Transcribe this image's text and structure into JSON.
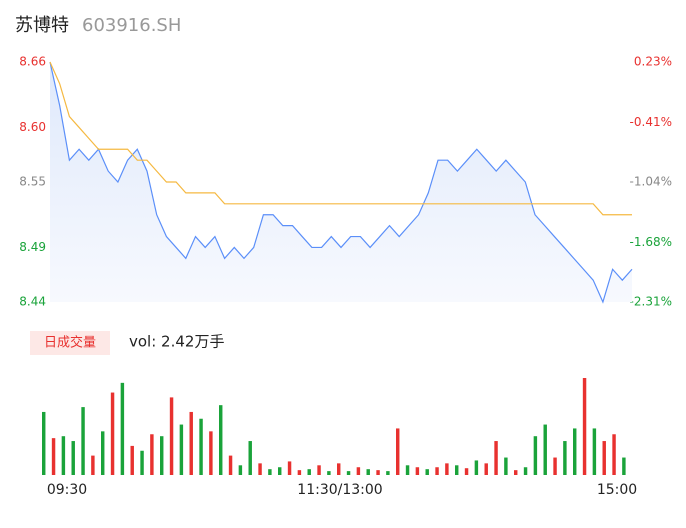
{
  "header": {
    "name": "苏博特",
    "code": "603916.SH"
  },
  "chart_data": [
    {
      "type": "line",
      "ylim": [
        8.44,
        8.66
      ],
      "y2lim": [
        -2.31,
        0.23
      ],
      "yticks": [
        8.66,
        {
          "value": 8.6,
          "label": "8.60"
        },
        8.55,
        8.49,
        8.44
      ],
      "ytick_colors": [
        "#e8312f",
        "#e8312f",
        "#888888",
        "#1aa33a",
        "#1aa33a"
      ],
      "y2ticks": [
        {
          "value": 0.23,
          "label": "0.23%"
        },
        {
          "value": -0.41,
          "label": "-0.41%"
        },
        {
          "value": -1.04,
          "label": "-1.04%"
        },
        {
          "value": -1.68,
          "label": "-1.68%"
        },
        {
          "value": -2.31,
          "label": "-2.31%"
        }
      ],
      "xticks": [
        "09:30",
        "11:30/13:00",
        "15:00"
      ],
      "series": [
        {
          "color": "#5b8ff9",
          "values": [
            8.66,
            8.62,
            8.57,
            8.58,
            8.57,
            8.58,
            8.56,
            8.55,
            8.57,
            8.58,
            8.56,
            8.52,
            8.5,
            8.49,
            8.48,
            8.5,
            8.49,
            8.5,
            8.48,
            8.49,
            8.48,
            8.49,
            8.52,
            8.52,
            8.51,
            8.51,
            8.5,
            8.49,
            8.49,
            8.5,
            8.49,
            8.5,
            8.5,
            8.49,
            8.5,
            8.51,
            8.5,
            8.51,
            8.52,
            8.54,
            8.57,
            8.57,
            8.56,
            8.57,
            8.58,
            8.57,
            8.56,
            8.57,
            8.56,
            8.55,
            8.52,
            8.51,
            8.5,
            8.49,
            8.48,
            8.47,
            8.46,
            8.44,
            8.47,
            8.46,
            8.47
          ]
        },
        {
          "color": "#f5b942",
          "values": [
            8.66,
            8.64,
            8.61,
            8.6,
            8.59,
            8.58,
            8.58,
            8.58,
            8.58,
            8.57,
            8.57,
            8.56,
            8.55,
            8.55,
            8.54,
            8.54,
            8.54,
            8.54,
            8.53,
            8.53,
            8.53,
            8.53,
            8.53,
            8.53,
            8.53,
            8.53,
            8.53,
            8.53,
            8.53,
            8.53,
            8.53,
            8.53,
            8.53,
            8.53,
            8.53,
            8.53,
            8.53,
            8.53,
            8.53,
            8.53,
            8.53,
            8.53,
            8.53,
            8.53,
            8.53,
            8.53,
            8.53,
            8.53,
            8.53,
            8.53,
            8.53,
            8.53,
            8.53,
            8.53,
            8.53,
            8.53,
            8.53,
            8.52,
            8.52,
            8.52,
            8.52
          ]
        }
      ]
    },
    {
      "type": "bar",
      "label": "日成交量",
      "summary": "vol: 2.42万手",
      "ylim": [
        0,
        100
      ],
      "values": [
        65,
        38,
        40,
        35,
        70,
        20,
        45,
        85,
        95,
        30,
        25,
        42,
        40,
        80,
        52,
        65,
        58,
        45,
        72,
        20,
        10,
        35,
        12,
        6,
        8,
        14,
        5,
        6,
        10,
        4,
        12,
        4,
        8,
        6,
        5,
        4,
        48,
        10,
        8,
        6,
        8,
        12,
        10,
        7,
        15,
        12,
        35,
        18,
        5,
        8,
        40,
        52,
        18,
        35,
        48,
        100,
        48,
        35,
        42,
        18
      ],
      "colors": [
        "#1aa33a",
        "#e8312f",
        "#1aa33a",
        "#1aa33a",
        "#1aa33a",
        "#e8312f",
        "#1aa33a",
        "#e8312f",
        "#1aa33a",
        "#e8312f",
        "#1aa33a",
        "#e8312f",
        "#1aa33a",
        "#e8312f",
        "#1aa33a",
        "#e8312f",
        "#1aa33a",
        "#e8312f",
        "#1aa33a",
        "#e8312f",
        "#1aa33a",
        "#1aa33a",
        "#e8312f",
        "#1aa33a",
        "#1aa33a",
        "#e8312f",
        "#e8312f",
        "#1aa33a",
        "#e8312f",
        "#1aa33a",
        "#e8312f",
        "#1aa33a",
        "#e8312f",
        "#1aa33a",
        "#e8312f",
        "#1aa33a",
        "#e8312f",
        "#1aa33a",
        "#e8312f",
        "#1aa33a",
        "#e8312f",
        "#e8312f",
        "#1aa33a",
        "#e8312f",
        "#1aa33a",
        "#e8312f",
        "#e8312f",
        "#1aa33a",
        "#e8312f",
        "#1aa33a",
        "#1aa33a",
        "#1aa33a",
        "#e8312f",
        "#1aa33a",
        "#1aa33a",
        "#e8312f",
        "#1aa33a",
        "#e8312f",
        "#e8312f",
        "#1aa33a"
      ]
    }
  ]
}
